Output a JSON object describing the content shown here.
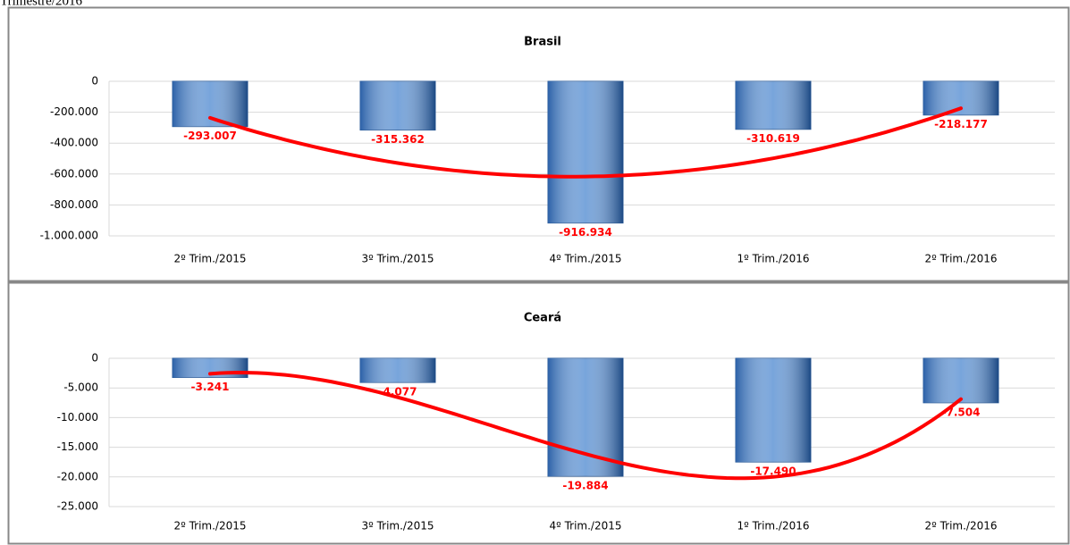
{
  "header_text": "Trimestre/2016",
  "chart_data": [
    {
      "type": "bar",
      "title": "Brasil",
      "categories": [
        "2º Trim./2015",
        "3º Trim./2015",
        "4º Trim./2015",
        "1º Trim./2016",
        "2º Trim./2016"
      ],
      "values": [
        -293007,
        -315362,
        -916934,
        -310619,
        -218177
      ],
      "value_labels": [
        "-293.007",
        "-315.362",
        "-916.934",
        "-310.619",
        "-218.177"
      ],
      "color": "#4a86cf",
      "label_color": "#ff0000",
      "ylim": [
        -1000000,
        0
      ],
      "yticks": [
        0,
        {
          "value": -200000,
          "label": "-200.000"
        },
        {
          "value": -400000,
          "label": "-400.000"
        },
        {
          "value": -600000,
          "label": "-600.000"
        },
        {
          "value": -800000,
          "label": "-800.000"
        },
        {
          "value": -1000000,
          "label": "-1.000.000"
        }
      ],
      "grid": true,
      "trendline": {
        "type": "polynomial",
        "order": 2,
        "color": "#ff0000"
      }
    },
    {
      "type": "bar",
      "title": "Ceará",
      "categories": [
        "2º Trim./2015",
        "3º Trim./2015",
        "4º Trim./2015",
        "1º Trim./2016",
        "2º Trim./2016"
      ],
      "values": [
        -3241,
        -4077,
        -19884,
        -17490,
        -7504
      ],
      "value_labels": [
        "-3.241",
        "-4.077",
        "-19.884",
        "-17.490",
        "-7.504"
      ],
      "color": "#4a86cf",
      "label_color": "#ff0000",
      "ylim": [
        -25000,
        0
      ],
      "yticks": [
        0,
        {
          "value": -5000,
          "label": "-5.000"
        },
        {
          "value": -10000,
          "label": "-10.000"
        },
        {
          "value": -15000,
          "label": "-15.000"
        },
        {
          "value": -20000,
          "label": "-20.000"
        },
        {
          "value": -25000,
          "label": "-25.000"
        }
      ],
      "grid": true,
      "trendline": {
        "type": "polynomial",
        "order": 3,
        "color": "#ff0000"
      }
    }
  ]
}
